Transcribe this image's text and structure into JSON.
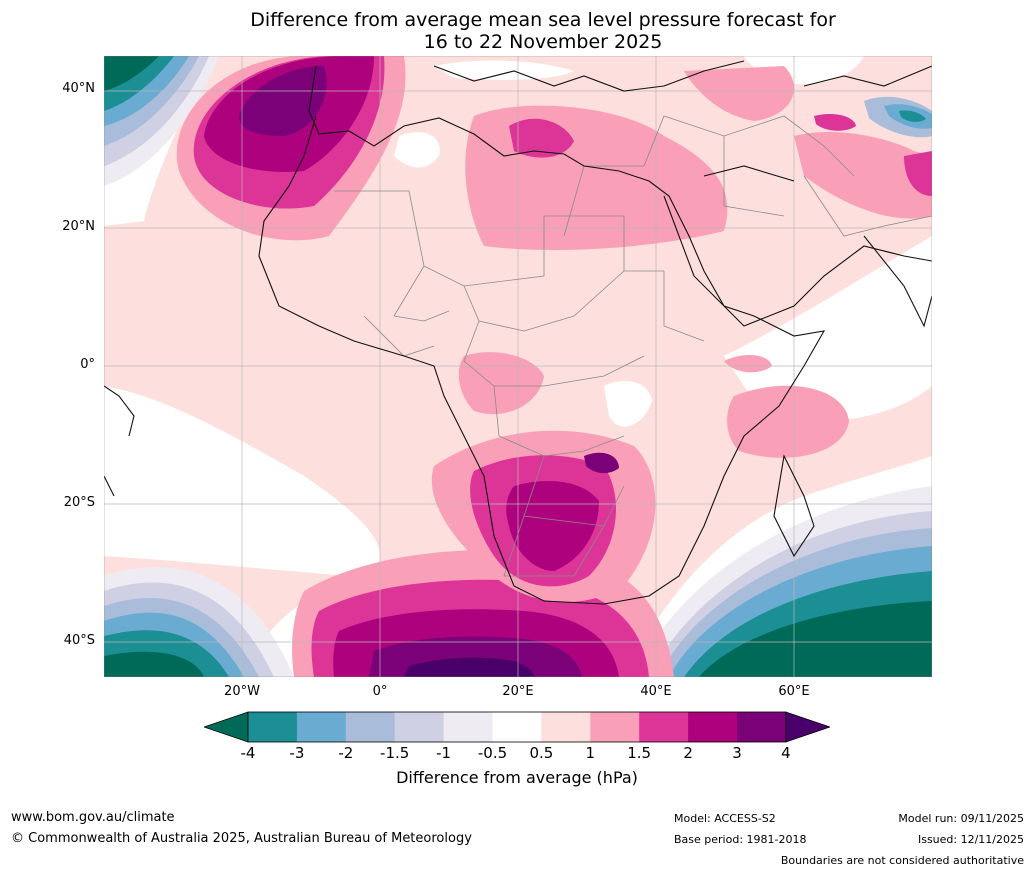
{
  "title": {
    "line1": "Difference from average mean sea level pressure forecast for",
    "line2": "16 to 22 November 2025"
  },
  "map": {
    "lat_labels": [
      "40°N",
      "20°N",
      "0°",
      "20°S",
      "40°S"
    ],
    "lon_labels": [
      "20°W",
      "0°",
      "20°E",
      "40°E",
      "60°E"
    ],
    "extent": {
      "lon_min": -40,
      "lon_max": 80,
      "lat_min": -45,
      "lat_max": 45
    }
  },
  "colorbar": {
    "ticks": [
      "-4",
      "-3",
      "-2",
      "-1.5",
      "-1",
      "-0.5",
      "0.5",
      "1",
      "1.5",
      "2",
      "3",
      "4"
    ],
    "colors": [
      "#006a59",
      "#1b8f94",
      "#6aabd2",
      "#a9bcd9",
      "#cfd0e4",
      "#efebf3",
      "#ffffff",
      "#fde0dd",
      "#f9a0b8",
      "#dd3497",
      "#ae017e",
      "#7a0177",
      "#49006a"
    ],
    "label": "Difference from average (hPa)"
  },
  "footer": {
    "website": "www.bom.gov.au/climate",
    "copyright": "© Commonwealth of Australia 2025, Australian Bureau of Meteorology",
    "model": "Model: ACCESS-S2",
    "base_period": "Base period: 1981-2018",
    "model_run": "Model run: 09/11/2025",
    "issued": "Issued: 12/11/2025",
    "boundaries_note": "Boundaries are not considered authoritative"
  }
}
